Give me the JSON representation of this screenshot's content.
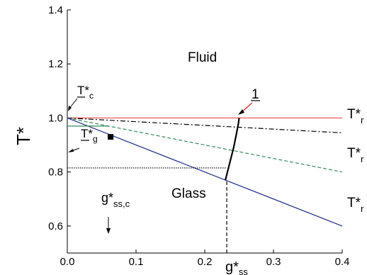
{
  "chart_data": {
    "type": "line",
    "xlabel": "g*",
    "xlabel_sub": "ss",
    "ylabel": "T*",
    "xlim": [
      0.0,
      0.4
    ],
    "ylim": [
      0.5,
      1.4
    ],
    "x_ticks": [
      "0.0",
      "0.1",
      "0.2",
      "0.3",
      "0.4"
    ],
    "y_ticks": [
      "0.6",
      "0.8",
      "1.0",
      "1.2",
      "1.4"
    ],
    "grid": false,
    "series": [
      {
        "key": "line-red",
        "style": "solid",
        "color": "#e8474a",
        "x": [
          0.0,
          0.4
        ],
        "y": [
          1.0,
          1.0
        ]
      },
      {
        "key": "line-dashdot",
        "style": "dashdot",
        "color": "#000000",
        "x": [
          0.0,
          0.4
        ],
        "y": [
          1.0,
          0.945
        ]
      },
      {
        "key": "line-green",
        "style": "dashed",
        "color": "#2f8a5a",
        "x": [
          0.0,
          0.4
        ],
        "y": [
          1.0,
          0.8
        ]
      },
      {
        "key": "line-blue",
        "style": "solid",
        "color": "#1e2c8c",
        "x": [
          0.0,
          0.4
        ],
        "y": [
          1.0,
          0.6
        ]
      },
      {
        "key": "curve-1",
        "style": "solid",
        "color": "#000000",
        "x": [
          0.23,
          0.236,
          0.242,
          0.246,
          0.249,
          0.25
        ],
        "y": [
          0.77,
          0.83,
          0.89,
          0.94,
          0.98,
          1.0
        ]
      },
      {
        "key": "short-green",
        "style": "solid",
        "color": "#2f8a5a",
        "x": [
          0.0,
          0.06
        ],
        "y": [
          0.97,
          0.97
        ]
      },
      {
        "key": "tg-line",
        "style": "dotted",
        "color": "#000000",
        "x": [
          0.0,
          0.232
        ],
        "y": [
          0.815,
          0.815
        ]
      },
      {
        "key": "vertical-dashed",
        "style": "dashed",
        "color": "#000000",
        "x": [
          0.232,
          0.232
        ],
        "y": [
          0.5,
          0.77
        ]
      }
    ],
    "points": [
      {
        "label": "square-marker",
        "x": 0.063,
        "y": 0.93
      }
    ],
    "annotations": {
      "fluid": "Fluid",
      "glass": "Glass",
      "curve_label": "1",
      "tc_main": "T*",
      "tc_sub": "c",
      "tg_main": "T*",
      "tg_sub": "g",
      "gssc_main": "g*",
      "gssc_sub": "ss,c",
      "right_label_main": "T*",
      "right_label_sub": "r"
    }
  }
}
